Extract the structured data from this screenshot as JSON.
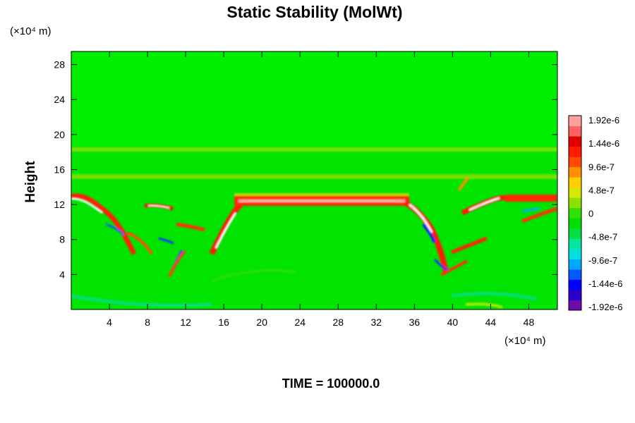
{
  "chart_data": {
    "type": "heatmap",
    "title": "Static Stability (MolWt)",
    "ylabel": "Height",
    "y_unit": "(×10⁴ m)",
    "x_unit": "(×10⁴ m)",
    "xlim": [
      0,
      51
    ],
    "ylim": [
      0,
      29.5
    ],
    "xticks": [
      4,
      8,
      12,
      16,
      20,
      24,
      28,
      32,
      36,
      40,
      44,
      48
    ],
    "yticks": [
      4,
      8,
      12,
      16,
      20,
      24,
      28
    ],
    "footer": "TIME = 100000.0",
    "colorbar": {
      "labels": [
        "1.92e-6",
        "1.44e-6",
        "9.6e-7",
        "4.8e-7",
        "0",
        "-4.8e-7",
        "-9.6e-7",
        "-1.44e-6",
        "-1.92e-6"
      ],
      "range": [
        -1.92e-06,
        1.92e-06
      ],
      "colors": [
        "#6a0dad",
        "#2a00c8",
        "#0000ff",
        "#005aff",
        "#00a8ff",
        "#00e0e0",
        "#00e8a0",
        "#00e040",
        "#00e000",
        "#30e000",
        "#8ee000",
        "#d8e800",
        "#ffd000",
        "#ff9000",
        "#ff4a00",
        "#ff1a00",
        "#e00000",
        "#ff6060",
        "#ffa0a0"
      ]
    },
    "field_features": [
      {
        "name": "background",
        "value": 0
      },
      {
        "name": "stable-layer",
        "x": [
          17,
          35.5
        ],
        "y": 12.8,
        "value": 1.92e-06
      },
      {
        "name": "stable-layer-right",
        "x": [
          45,
          51
        ],
        "y": 12.8,
        "value": 1.92e-06
      },
      {
        "name": "weak-layer-upper",
        "x": [
          0,
          51
        ],
        "y": 18.3,
        "value": 4.8e-07
      },
      {
        "name": "weak-layer-mid",
        "x": [
          0,
          51
        ],
        "y": 15.2,
        "value": 4.8e-07
      }
    ]
  }
}
